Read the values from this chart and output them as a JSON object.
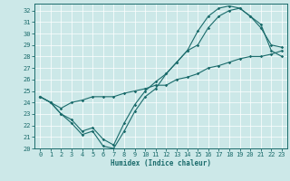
{
  "xlabel": "Humidex (Indice chaleur)",
  "background_color": "#cce8e8",
  "grid_color": "#ffffff",
  "line_color": "#1a6b6b",
  "xlim": [
    -0.5,
    23.5
  ],
  "ylim": [
    20,
    32.6
  ],
  "yticks": [
    20,
    21,
    22,
    23,
    24,
    25,
    26,
    27,
    28,
    29,
    30,
    31,
    32
  ],
  "xticks": [
    0,
    1,
    2,
    3,
    4,
    5,
    6,
    7,
    8,
    9,
    10,
    11,
    12,
    13,
    14,
    15,
    16,
    17,
    18,
    19,
    20,
    21,
    22,
    23
  ],
  "line1_y": [
    24.5,
    24.0,
    23.0,
    22.2,
    21.2,
    21.5,
    20.2,
    20.0,
    21.5,
    23.2,
    24.5,
    25.2,
    26.5,
    27.5,
    28.5,
    29.0,
    30.5,
    31.5,
    32.0,
    32.2,
    31.5,
    30.8,
    28.5,
    28.0
  ],
  "line2_y": [
    24.5,
    24.0,
    23.0,
    22.5,
    21.5,
    21.8,
    20.8,
    20.3,
    22.2,
    23.8,
    25.0,
    25.8,
    26.5,
    27.5,
    28.5,
    30.2,
    31.5,
    32.2,
    32.4,
    32.2,
    31.5,
    30.5,
    29.0,
    28.8
  ],
  "line3_y": [
    24.5,
    24.0,
    23.5,
    24.0,
    24.2,
    24.5,
    24.5,
    24.5,
    24.8,
    25.0,
    25.2,
    25.5,
    25.5,
    26.0,
    26.2,
    26.5,
    27.0,
    27.2,
    27.5,
    27.8,
    28.0,
    28.0,
    28.2,
    28.5
  ],
  "markersize": 1.8,
  "linewidth": 0.8,
  "tick_fontsize": 5.0,
  "xlabel_fontsize": 5.5
}
